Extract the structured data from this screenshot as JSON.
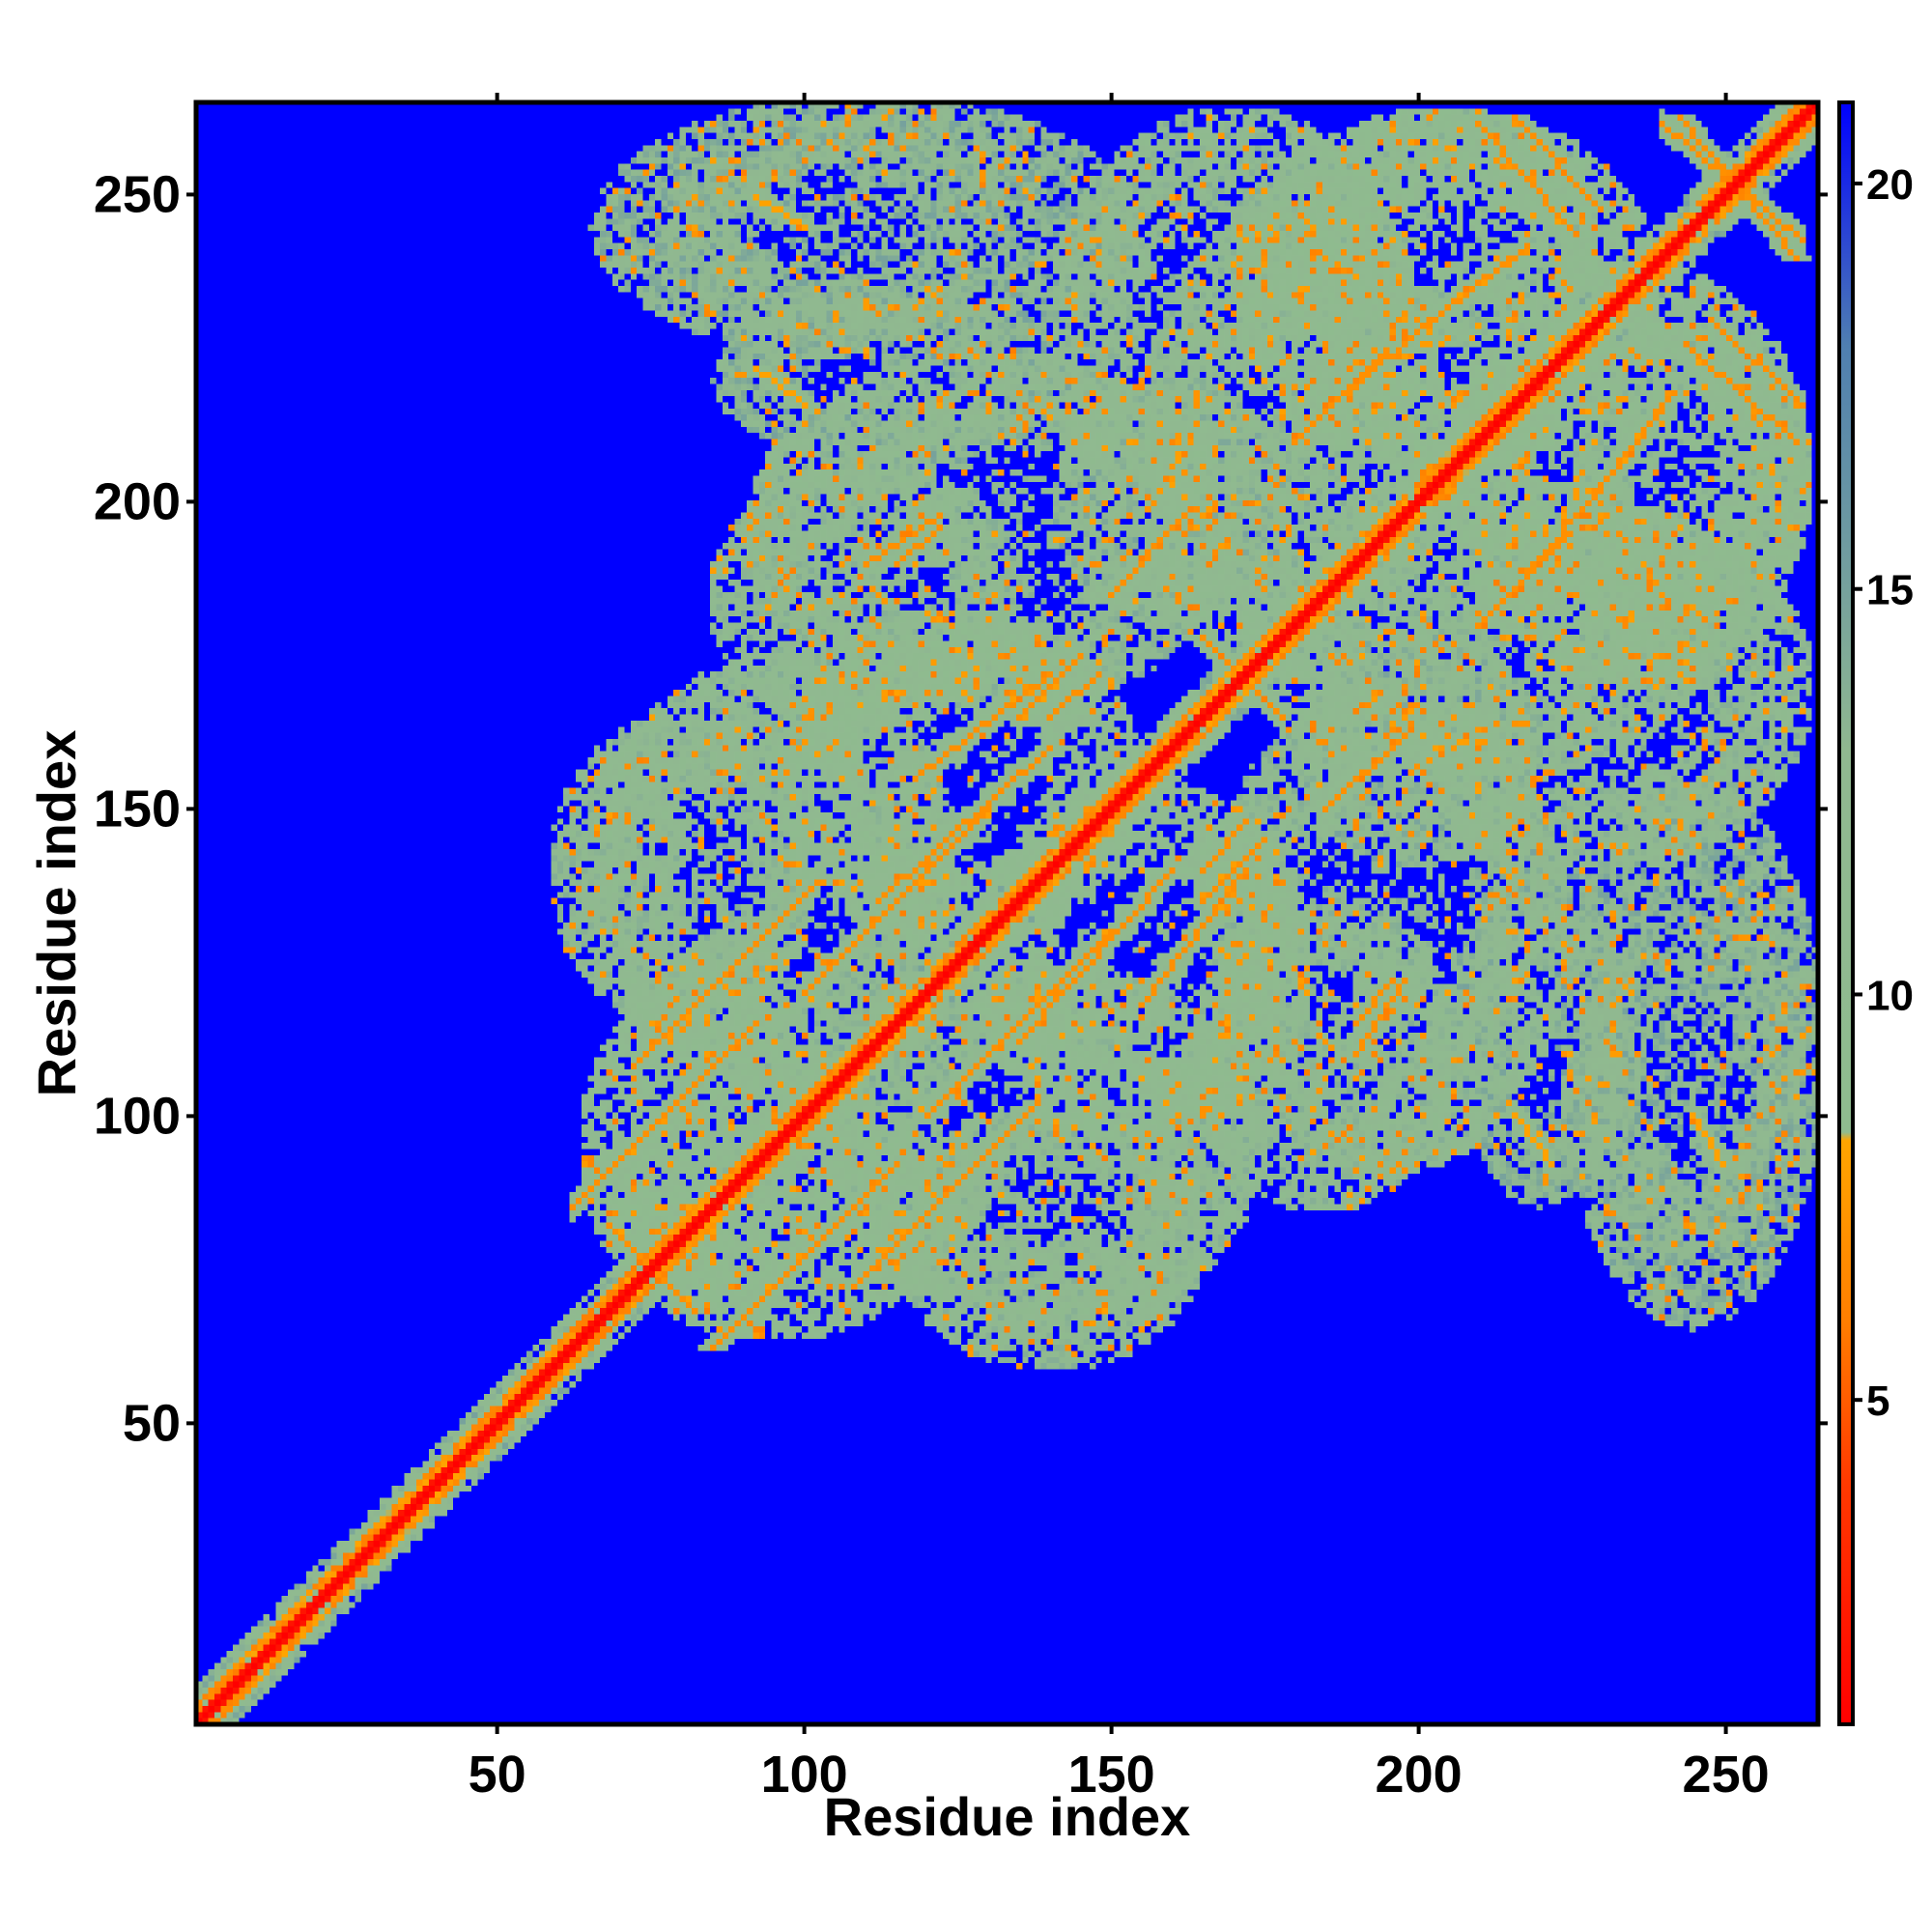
{
  "chart_data": {
    "type": "heatmap",
    "title": "",
    "xlabel": "Residue index",
    "ylabel": "Residue index",
    "xlim": [
      1,
      265
    ],
    "ylim": [
      1,
      265
    ],
    "x_ticks": [
      50,
      100,
      150,
      200,
      250
    ],
    "y_ticks": [
      50,
      100,
      150,
      200,
      250
    ],
    "x_tick_labels": [
      "50",
      "100",
      "150",
      "200",
      "250"
    ],
    "y_tick_labels": [
      "50",
      "100",
      "150",
      "200",
      "250"
    ],
    "colorbar": {
      "range": [
        1,
        21
      ],
      "ticks": [
        5,
        10,
        15,
        20
      ],
      "tick_labels": [
        "5",
        "10",
        "15",
        "20"
      ],
      "stops": [
        {
          "value": 1,
          "color": "#ff0000"
        },
        {
          "value": 4,
          "color": "#ff3a00"
        },
        {
          "value": 6,
          "color": "#ff7f00"
        },
        {
          "value": 8.2,
          "color": "#ffa500"
        },
        {
          "value": 8.3,
          "color": "#8fbc8f"
        },
        {
          "value": 13,
          "color": "#90b890"
        },
        {
          "value": 18,
          "color": "#4f7fb0"
        },
        {
          "value": 21,
          "color": "#0000ff"
        }
      ]
    },
    "background_value": 21,
    "diagonal_value": 1,
    "structure_segments": [
      {
        "type": "parallel",
        "from": [
          85,
          62
        ],
        "to": [
          115,
          92
        ],
        "value": 7
      },
      {
        "type": "parallel",
        "from": [
          108,
          72
        ],
        "to": [
          138,
          102
        ],
        "value": 7
      },
      {
        "type": "parallel",
        "from": [
          120,
          100
        ],
        "to": [
          150,
          130
        ],
        "value": 7
      },
      {
        "type": "parallel",
        "from": [
          135,
          112
        ],
        "to": [
          160,
          140
        ],
        "value": 7
      },
      {
        "type": "parallel",
        "from": [
          155,
          118
        ],
        "to": [
          172,
          140
        ],
        "value": 7
      },
      {
        "type": "parallel",
        "from": [
          165,
          135
        ],
        "to": [
          175,
          145
        ],
        "value": 7
      },
      {
        "type": "parallel",
        "from": [
          185,
          150
        ],
        "to": [
          198,
          162
        ],
        "value": 7
      },
      {
        "type": "parallel",
        "from": [
          210,
          180
        ],
        "to": [
          225,
          195
        ],
        "value": 7
      },
      {
        "type": "parallel",
        "from": [
          215,
          185
        ],
        "to": [
          232,
          205
        ],
        "value": 7
      },
      {
        "type": "parallel",
        "from": [
          228,
          200
        ],
        "to": [
          242,
          218
        ],
        "value": 7
      },
      {
        "type": "anti",
        "from": [
          68,
          82
        ],
        "to": [
          82,
          68
        ],
        "value": 7
      },
      {
        "type": "anti",
        "from": [
          216,
          263
        ],
        "to": [
          230,
          248
        ],
        "value": 7
      },
      {
        "type": "anti",
        "from": [
          243,
          263
        ],
        "to": [
          262,
          240
        ],
        "value": 7
      },
      {
        "type": "anti",
        "from": [
          245,
          225
        ],
        "to": [
          262,
          210
        ],
        "value": 7
      },
      {
        "type": "anti",
        "from": [
          190,
          110
        ],
        "to": [
          198,
          122
        ],
        "value": 7
      },
      {
        "type": "anti",
        "from": [
          165,
          178
        ],
        "to": [
          175,
          168
        ],
        "value": 7
      },
      {
        "type": "anti",
        "from": [
          92,
          250
        ],
        "to": [
          100,
          245
        ],
        "value": 8
      },
      {
        "type": "anti",
        "from": [
          92,
          222
        ],
        "to": [
          100,
          216
        ],
        "value": 8
      },
      {
        "type": "anti",
        "from": [
          115,
          190
        ],
        "to": [
          122,
          196
        ],
        "value": 7
      },
      {
        "type": "anti",
        "from": [
          140,
          165
        ],
        "to": [
          148,
          172
        ],
        "value": 7
      }
    ],
    "contact_regions": [
      {
        "center": [
          125,
          155
        ],
        "rx": 30,
        "ry": 28,
        "value": 11
      },
      {
        "center": [
          80,
          140
        ],
        "rx": 22,
        "ry": 26,
        "value": 12
      },
      {
        "center": [
          110,
          185
        ],
        "rx": 26,
        "ry": 22,
        "value": 12
      },
      {
        "center": [
          105,
          245
        ],
        "rx": 28,
        "ry": 18,
        "value": 13
      },
      {
        "center": [
          115,
          220
        ],
        "rx": 30,
        "ry": 14,
        "value": 13
      },
      {
        "center": [
          95,
          85
        ],
        "rx": 28,
        "ry": 22,
        "value": 11
      },
      {
        "center": [
          140,
          95
        ],
        "rx": 35,
        "ry": 30,
        "value": 12
      },
      {
        "center": [
          195,
          130
        ],
        "rx": 30,
        "ry": 40,
        "value": 12
      },
      {
        "center": [
          245,
          110
        ],
        "rx": 22,
        "ry": 45,
        "value": 13
      },
      {
        "center": [
          230,
          170
        ],
        "rx": 35,
        "ry": 30,
        "value": 12
      },
      {
        "center": [
          205,
          235
        ],
        "rx": 35,
        "ry": 30,
        "value": 11
      },
      {
        "center": [
          180,
          210
        ],
        "rx": 25,
        "ry": 40,
        "value": 12
      },
      {
        "center": [
          245,
          205
        ],
        "rx": 20,
        "ry": 25,
        "value": 12
      },
      {
        "center": [
          160,
          200
        ],
        "rx": 20,
        "ry": 20,
        "value": 13
      }
    ]
  }
}
